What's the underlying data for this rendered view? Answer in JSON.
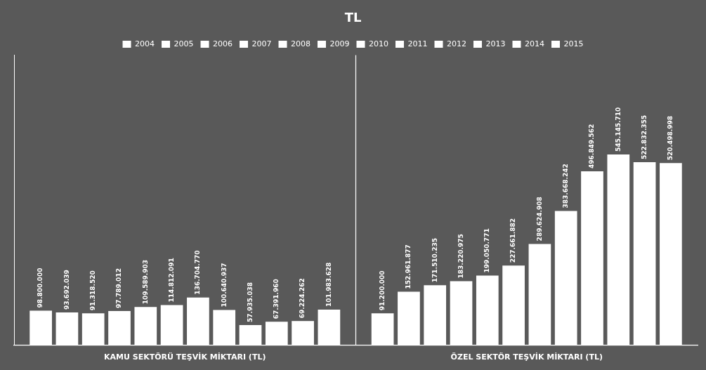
{
  "chart_data": {
    "type": "bar",
    "title": "TL",
    "categories": [
      "KAMU SEKTÖRÜ TEŞVİK MİKTARI (TL)",
      "ÖZEL SEKTÖR TEŞVİK MİKTARI (TL)"
    ],
    "series": [
      {
        "name": "2004",
        "color": "#ffffff",
        "values": [
          98800000,
          91200000
        ],
        "value_labels": [
          "98.800.000",
          "91.200.000"
        ]
      },
      {
        "name": "2005",
        "color": "#ffffff",
        "values": [
          93692039,
          152961877
        ],
        "value_labels": [
          "93.692.039",
          "152.961.877"
        ]
      },
      {
        "name": "2006",
        "color": "#ffffff",
        "values": [
          91318520,
          171510235
        ],
        "value_labels": [
          "91.318.520",
          "171.510.235"
        ]
      },
      {
        "name": "2007",
        "color": "#ffffff",
        "values": [
          97789012,
          183220975
        ],
        "value_labels": [
          "97.789.012",
          "183.220.975"
        ]
      },
      {
        "name": "2008",
        "color": "#ffffff",
        "values": [
          109589903,
          199050771
        ],
        "value_labels": [
          "109.589.903",
          "199.050.771"
        ]
      },
      {
        "name": "2009",
        "color": "#ffffff",
        "values": [
          114812091,
          227661882
        ],
        "value_labels": [
          "114.812.091",
          "227.661.882"
        ]
      },
      {
        "name": "2010",
        "color": "#ffffff",
        "values": [
          136704770,
          289624908
        ],
        "value_labels": [
          "136.704.770",
          "289.624.908"
        ]
      },
      {
        "name": "2011",
        "color": "#ffffff",
        "values": [
          100640937,
          383668242
        ],
        "value_labels": [
          "100.640.937",
          "383.668.242"
        ]
      },
      {
        "name": "2012",
        "color": "#ffffff",
        "values": [
          57935038,
          496849562
        ],
        "value_labels": [
          "57.935.038",
          "496.849.562"
        ]
      },
      {
        "name": "2013",
        "color": "#ffffff",
        "values": [
          67391960,
          545145710
        ],
        "value_labels": [
          "67.391.960",
          "545.145.710"
        ]
      },
      {
        "name": "2014",
        "color": "#ffffff",
        "values": [
          69224262,
          522832355
        ],
        "value_labels": [
          "69.224.262",
          "522.832.355"
        ]
      },
      {
        "name": "2015",
        "color": "#ffffff",
        "values": [
          101983628,
          520498998
        ],
        "value_labels": [
          "101.983.628",
          "520.498.998"
        ]
      }
    ],
    "ylim": [
      0,
      828621479.2
    ],
    "grid": false,
    "legend": "top",
    "data_labels": true,
    "tick_labels": "x"
  }
}
